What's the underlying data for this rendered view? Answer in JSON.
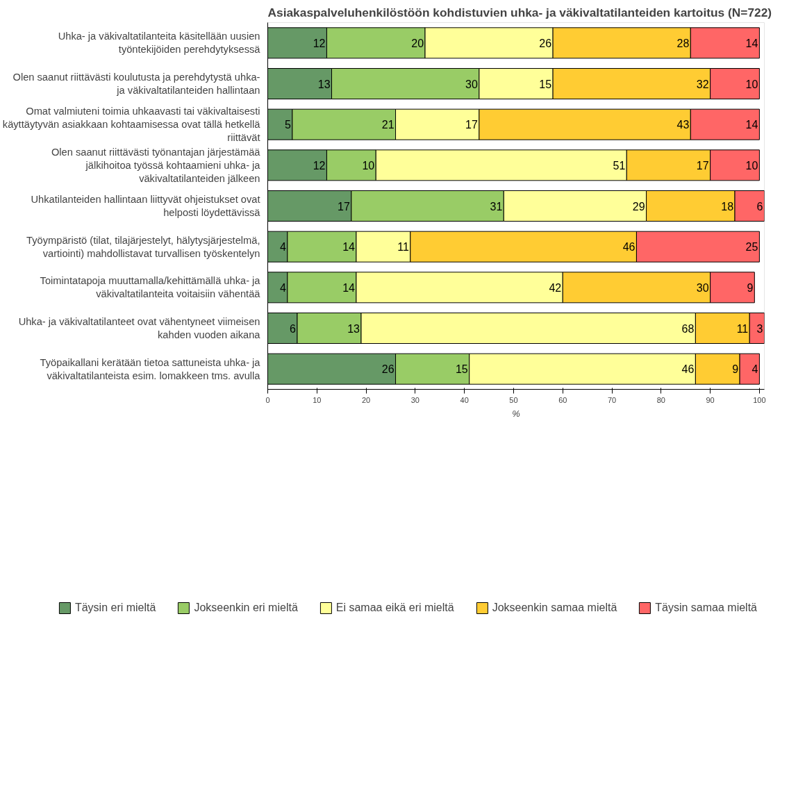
{
  "chart_data": {
    "type": "bar",
    "orientation": "horizontal",
    "stacked": true,
    "data_labels": true,
    "title": "Asiakaspalveluhenkilöstöön kohdistuvien uhka- ja väkivaltatilanteiden kartoitus (N=722)",
    "xlabel": "%",
    "categories": [
      "Uhka- ja väkivaltatilanteita käsitellään uusien työntekijöiden perehdytyksessä",
      "Olen saanut riittävästi koulutusta ja perehdytystä uhka- ja väkivaltatilanteiden hallintaan",
      "Omat valmiuteni toimia uhkaavasti tai väkivaltaisesti käyttäytyvän asiakkaan kohtaamisessa ovat tällä hetkellä riittävät",
      "Olen saanut riittävästi työnantajan järjestämää jälkihoitoa työssä kohtaamieni uhka- ja väkivaltatilanteiden jälkeen",
      "Uhkatilanteiden hallintaan liittyvät ohjeistukset ovat helposti löydettävissä",
      "Työympäristö (tilat, tilajärjestelyt, hälytysjärjestelmä, vartiointi) mahdollistavat turvallisen työskentelyn",
      "Toimintatapoja muuttamalla/kehittämällä uhka- ja väkivaltatilanteita voitaisiin vähentää",
      "Uhka- ja väkivaltatilanteet ovat vähentyneet viimeisen kahden vuoden aikana",
      "Työpaikallani kerätään tietoa sattuneista uhka- ja väkivaltatilanteista esim. lomakkeen tms. avulla"
    ],
    "series": [
      {
        "name": "Täysin eri mieltä",
        "color": "#669966",
        "values": [
          12,
          13,
          5,
          12,
          17,
          4,
          4,
          6,
          26
        ]
      },
      {
        "name": "Jokseenkin eri mieltä",
        "color": "#99cc66",
        "values": [
          20,
          30,
          21,
          10,
          31,
          14,
          14,
          13,
          15
        ]
      },
      {
        "name": "Ei samaa eikä eri mieltä",
        "color": "#ffff99",
        "values": [
          26,
          15,
          17,
          51,
          29,
          11,
          42,
          68,
          46
        ]
      },
      {
        "name": "Jokseenkin samaa mieltä",
        "color": "#ffcc33",
        "values": [
          28,
          32,
          43,
          17,
          18,
          46,
          30,
          11,
          9
        ]
      },
      {
        "name": "Täysin samaa mieltä",
        "color": "#ff6666",
        "values": [
          14,
          10,
          14,
          10,
          6,
          25,
          9,
          3,
          4
        ]
      }
    ],
    "xlim": [
      0,
      101
    ],
    "xticks": [
      0,
      10,
      20,
      30,
      40,
      50,
      60,
      70,
      80,
      90,
      100
    ],
    "grid": false,
    "legend": "bottom"
  }
}
